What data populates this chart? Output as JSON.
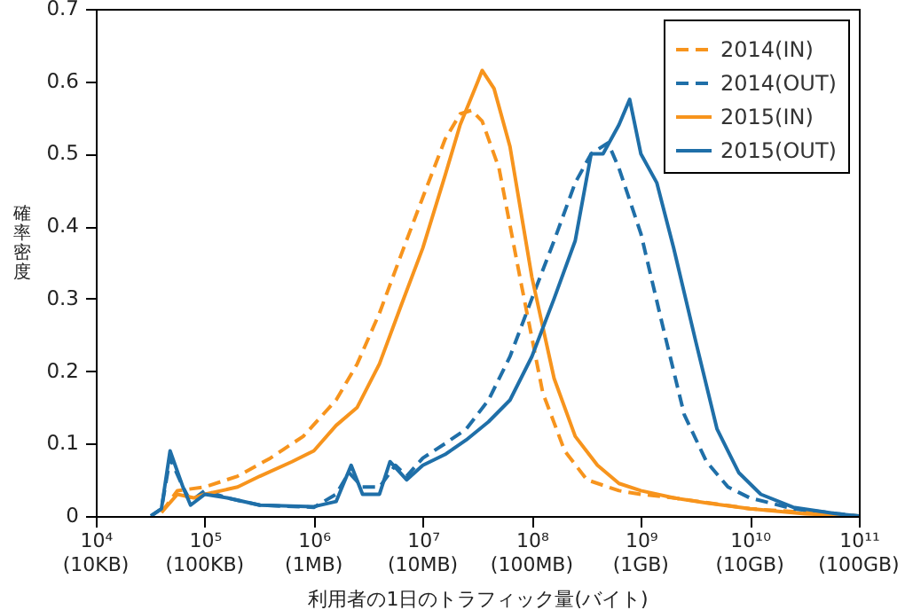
{
  "chart_data": {
    "type": "line",
    "xlabel": "利用者の1日のトラフィック量(バイト)",
    "ylabel": "確率密度",
    "log": "x",
    "xlim": [
      10000,
      100000000000
    ],
    "ylim": [
      0,
      0.7
    ],
    "xticks": [
      {
        "value": 10000,
        "label": "10⁴"
      },
      {
        "value": 100000,
        "label": "10⁵"
      },
      {
        "value": 1000000,
        "label": "10⁶"
      },
      {
        "value": 10000000,
        "label": "10⁷"
      },
      {
        "value": 100000000,
        "label": "10⁸"
      },
      {
        "value": 1000000000,
        "label": "10⁹"
      },
      {
        "value": 10000000000,
        "label": "10¹⁰"
      },
      {
        "value": 100000000000,
        "label": "10¹¹"
      }
    ],
    "annotations": [
      "(10KB)",
      "(100KB)",
      "(1MB)",
      "(10MB)",
      "(100MB)",
      "(1GB)",
      "(10GB)",
      "(100GB)"
    ],
    "yticks": [
      0,
      0.1,
      0.2,
      0.3,
      0.4,
      0.5,
      0.6,
      0.7
    ],
    "grid": false,
    "legend": "top right",
    "series": [
      {
        "name": "2014(IN)",
        "color": "#f7941d",
        "line_style": "dashed",
        "x": [
          40000.0,
          56000.0,
          100000.0,
          200000.0,
          400000.0,
          800000.0,
          1600000.0,
          2500000.0,
          4000000.0,
          6300000.0,
          10000000.0,
          16000000.0,
          22000000.0,
          28000000.0,
          35000000.0,
          50000000.0,
          80000000.0,
          126000000.0,
          200000000.0,
          320000000.0,
          630000000.0,
          1000000000.0,
          2000000000.0,
          10000000000.0,
          100000000000.0
        ],
        "values": [
          0.005,
          0.035,
          0.04,
          0.055,
          0.08,
          0.11,
          0.16,
          0.21,
          0.28,
          0.36,
          0.44,
          0.52,
          0.555,
          0.56,
          0.545,
          0.48,
          0.32,
          0.17,
          0.09,
          0.05,
          0.035,
          0.03,
          0.025,
          0.01,
          0
        ]
      },
      {
        "name": "2014(OUT)",
        "color": "#1f6fa8",
        "line_style": "dashed",
        "x": [
          32000.0,
          40000.0,
          48000.0,
          63000.0,
          74000.0,
          100000.0,
          160000.0,
          320000.0,
          1000000.0,
          1600000.0,
          2100000.0,
          2800000.0,
          4000000.0,
          5600000.0,
          7100000.0,
          10000000.0,
          16000000.0,
          25000000.0,
          40000000.0,
          63000000.0,
          100000000.0,
          160000000.0,
          250000000.0,
          350000000.0,
          500000000.0,
          630000000.0,
          1000000000.0,
          1600000000.0,
          2500000000.0,
          4000000000.0,
          6300000000.0,
          10000000000.0,
          25000000000.0,
          100000000000.0
        ],
        "values": [
          0,
          0.01,
          0.08,
          0.04,
          0.02,
          0.035,
          0.025,
          0.015,
          0.012,
          0.03,
          0.06,
          0.04,
          0.04,
          0.07,
          0.055,
          0.08,
          0.1,
          0.12,
          0.16,
          0.22,
          0.3,
          0.38,
          0.46,
          0.5,
          0.515,
          0.48,
          0.39,
          0.26,
          0.14,
          0.075,
          0.04,
          0.025,
          0.01,
          0
        ]
      },
      {
        "name": "2015(IN)",
        "color": "#f7941d",
        "line_style": "solid",
        "x": [
          40000.0,
          56000.0,
          79000.0,
          100000.0,
          200000.0,
          320000.0,
          630000.0,
          1000000.0,
          1600000.0,
          2500000.0,
          4000000.0,
          6300000.0,
          10000000.0,
          16000000.0,
          22000000.0,
          32000000.0,
          35000000.0,
          45000000.0,
          63000000.0,
          100000000.0,
          160000000.0,
          250000000.0,
          400000000.0,
          630000000.0,
          1000000000.0,
          2000000000.0,
          4000000000.0,
          10000000000.0,
          32000000000.0,
          100000000000.0
        ],
        "values": [
          0.005,
          0.03,
          0.025,
          0.03,
          0.04,
          0.055,
          0.075,
          0.09,
          0.125,
          0.15,
          0.21,
          0.29,
          0.37,
          0.47,
          0.54,
          0.6,
          0.615,
          0.59,
          0.51,
          0.33,
          0.19,
          0.11,
          0.07,
          0.045,
          0.035,
          0.025,
          0.018,
          0.01,
          0.003,
          0
        ]
      },
      {
        "name": "2015(OUT)",
        "color": "#1f6fa8",
        "line_style": "solid",
        "x": [
          32000.0,
          40000.0,
          48000.0,
          63000.0,
          74000.0,
          100000.0,
          160000.0,
          320000.0,
          1000000.0,
          1600000.0,
          2200000.0,
          2800000.0,
          4000000.0,
          5000000.0,
          7100000.0,
          10000000.0,
          16000000.0,
          25000000.0,
          40000000.0,
          63000000.0,
          100000000.0,
          160000000.0,
          250000000.0,
          350000000.0,
          450000000.0,
          630000000.0,
          790000000.0,
          1000000000.0,
          1400000000.0,
          2000000000.0,
          3200000000.0,
          5000000000.0,
          7900000000.0,
          12600000000.0,
          25000000000.0,
          63000000000.0,
          100000000000.0
        ],
        "values": [
          0,
          0.01,
          0.09,
          0.04,
          0.015,
          0.03,
          0.025,
          0.015,
          0.013,
          0.02,
          0.07,
          0.03,
          0.03,
          0.075,
          0.05,
          0.07,
          0.085,
          0.105,
          0.13,
          0.16,
          0.22,
          0.3,
          0.38,
          0.5,
          0.5,
          0.54,
          0.575,
          0.5,
          0.46,
          0.37,
          0.24,
          0.12,
          0.06,
          0.03,
          0.012,
          0.003,
          0
        ]
      }
    ]
  }
}
